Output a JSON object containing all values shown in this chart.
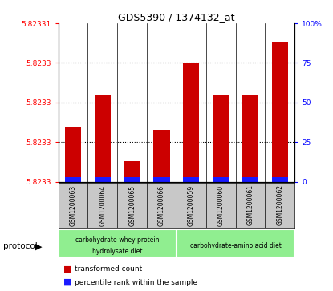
{
  "title": "GDS5390 / 1374132_at",
  "samples": [
    "GSM1200063",
    "GSM1200064",
    "GSM1200065",
    "GSM1200066",
    "GSM1200059",
    "GSM1200060",
    "GSM1200061",
    "GSM1200062"
  ],
  "bar_color_red": "#cc0000",
  "bar_color_blue": "#1a1aff",
  "bg_color_gray": "#c8c8c8",
  "bg_color_green": "#90ee90",
  "plot_bg": "#ffffff",
  "red_pct_heights": [
    35,
    55,
    13,
    33,
    75,
    55,
    55,
    88
  ],
  "blue_pct_heights": [
    3,
    3,
    3,
    3,
    3,
    3,
    3,
    3
  ],
  "ymin": 0,
  "ymax": 100,
  "ytick_left_labels": [
    "5.8233",
    "5.8233",
    "5.8233",
    "5.8233",
    "5.82331"
  ],
  "ytick_left_pcts": [
    0,
    25,
    50,
    75,
    100
  ],
  "ytick_right_labels": [
    "0",
    "25",
    "50",
    "75",
    "100%"
  ],
  "ytick_right_pcts": [
    0,
    25,
    50,
    75,
    100
  ],
  "group1_label_line1": "carbohydrate-whey protein",
  "group1_label_line2": "hydrolysate diet",
  "group2_label": "carbohydrate-amino acid diet",
  "legend_red_label": "transformed count",
  "legend_blue_label": "percentile rank within the sample",
  "protocol_text": "protocol"
}
